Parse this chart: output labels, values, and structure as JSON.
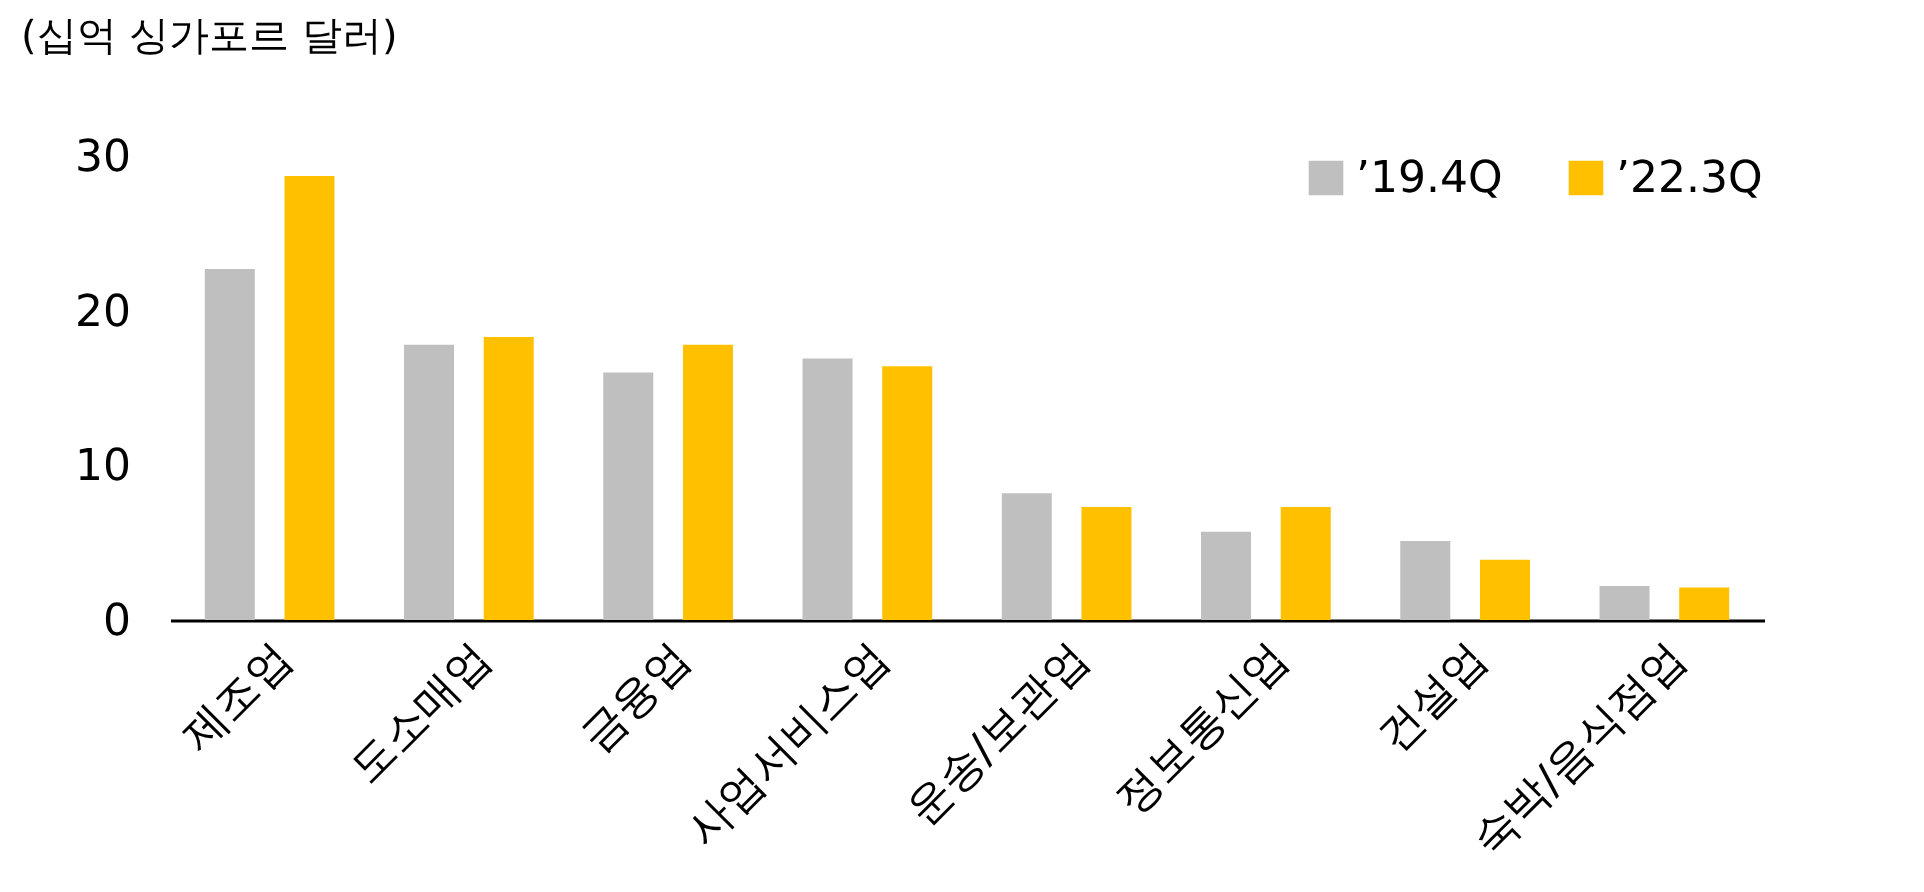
{
  "chart_data": {
    "type": "bar",
    "ylabel": "(십억 싱가포르 달러)",
    "categories": [
      "제조업",
      "도소매업",
      "금융업",
      "사업서비스업",
      "운송/보관업",
      "정보통신업",
      "건설업",
      "숙박/음식점업"
    ],
    "series": [
      {
        "name": "’19.4Q",
        "color": "#bfbfbf",
        "values": [
          22.7,
          17.8,
          16.0,
          16.9,
          8.2,
          5.7,
          5.1,
          2.2
        ]
      },
      {
        "name": "’22.3Q",
        "color": "#ffc000",
        "values": [
          28.7,
          18.3,
          17.8,
          16.4,
          7.3,
          7.3,
          3.9,
          2.1
        ]
      }
    ],
    "ylim": [
      0,
      30
    ],
    "yticks": [
      0,
      10,
      20,
      30
    ],
    "grid": false,
    "legend": "top right"
  }
}
